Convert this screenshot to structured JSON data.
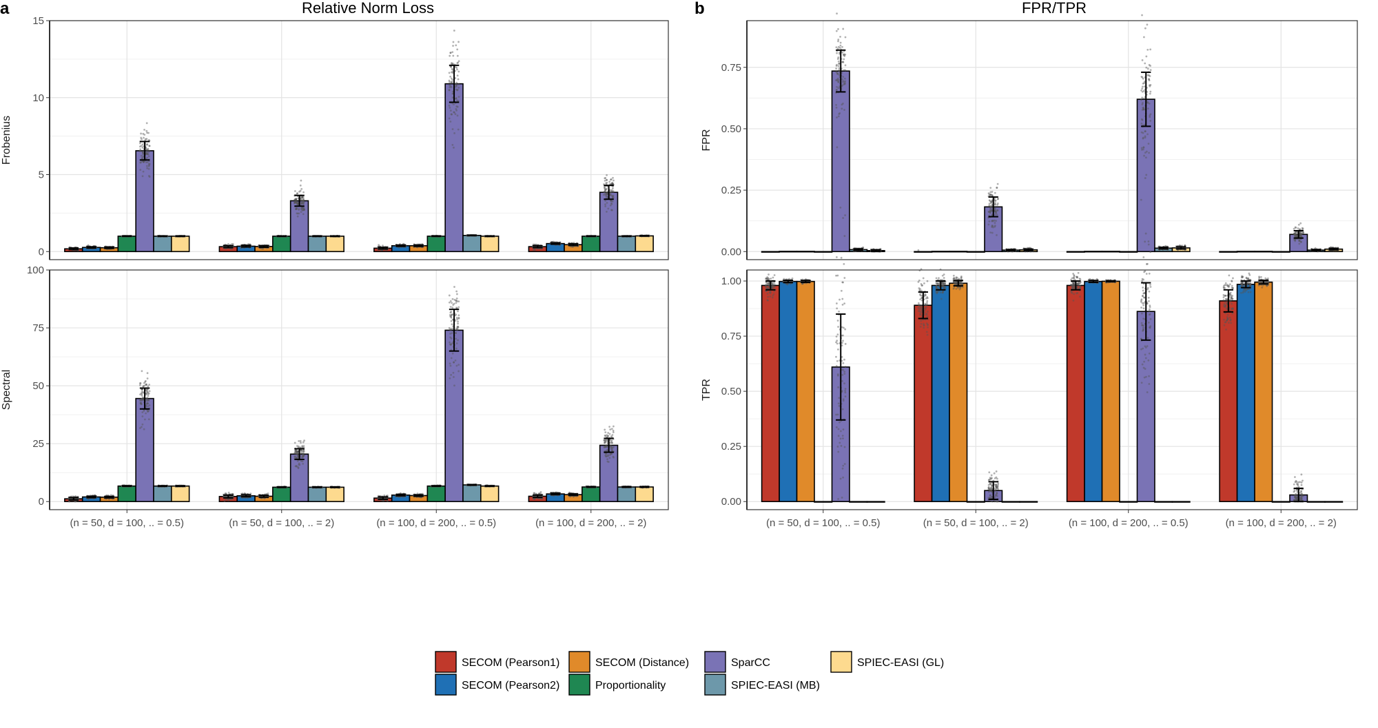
{
  "chart_data": {
    "panel_a": {
      "label": "a",
      "title": "Relative Norm Loss",
      "type": "bar",
      "categories": [
        "(n = 50, d = 100, .. = 0.5)",
        "(n = 50, d = 100, .. = 2)",
        "(n = 100, d = 200, .. = 0.5)",
        "(n = 100, d = 200, .. = 2)"
      ],
      "facets": [
        {
          "name": "Frobenius",
          "ylim": [
            0,
            15
          ],
          "yticks": [
            0,
            5,
            10,
            15
          ],
          "series": [
            {
              "name": "SECOM (Pearson1)",
              "values": [
                0.18,
                0.32,
                0.22,
                0.32
              ],
              "err": [
                0.05,
                0.06,
                0.05,
                0.06
              ]
            },
            {
              "name": "SECOM (Pearson2)",
              "values": [
                0.27,
                0.35,
                0.38,
                0.52
              ],
              "err": [
                0.04,
                0.05,
                0.04,
                0.04
              ]
            },
            {
              "name": "SECOM (Distance)",
              "values": [
                0.25,
                0.33,
                0.38,
                0.45
              ],
              "err": [
                0.04,
                0.05,
                0.04,
                0.05
              ]
            },
            {
              "name": "Proportionality",
              "values": [
                1.0,
                1.0,
                1.0,
                1.0
              ],
              "err": [
                0.01,
                0.01,
                0.01,
                0.01
              ]
            },
            {
              "name": "SparCC",
              "values": [
                6.55,
                3.3,
                10.9,
                3.85
              ],
              "err": [
                0.6,
                0.35,
                1.2,
                0.45
              ]
            },
            {
              "name": "SPIEC-EASI (MB)",
              "values": [
                1.0,
                1.0,
                1.05,
                1.0
              ],
              "err": [
                0.01,
                0.01,
                0.01,
                0.01
              ]
            },
            {
              "name": "SPIEC-EASI (GL)",
              "values": [
                1.0,
                1.0,
                1.0,
                1.02
              ],
              "err": [
                0.01,
                0.01,
                0.01,
                0.01
              ]
            }
          ]
        },
        {
          "name": "Spectral",
          "ylim": [
            0,
            100
          ],
          "yticks": [
            0,
            25,
            50,
            75,
            100
          ],
          "series": [
            {
              "name": "SECOM (Pearson1)",
              "values": [
                1.2,
                2.2,
                1.5,
                2.3
              ],
              "err": [
                0.5,
                0.6,
                0.5,
                0.5
              ]
            },
            {
              "name": "SECOM (Pearson2)",
              "values": [
                2.0,
                2.5,
                2.8,
                3.3
              ],
              "err": [
                0.3,
                0.4,
                0.3,
                0.3
              ]
            },
            {
              "name": "SECOM (Distance)",
              "values": [
                1.9,
                2.3,
                2.6,
                3.0
              ],
              "err": [
                0.3,
                0.4,
                0.3,
                0.3
              ]
            },
            {
              "name": "Proportionality",
              "values": [
                6.7,
                6.2,
                6.7,
                6.3
              ],
              "err": [
                0.1,
                0.1,
                0.1,
                0.1
              ]
            },
            {
              "name": "SparCC",
              "values": [
                44.5,
                20.5,
                74.0,
                24.3
              ],
              "err": [
                4.5,
                2.3,
                9.0,
                3.0
              ]
            },
            {
              "name": "SPIEC-EASI (MB)",
              "values": [
                6.7,
                6.2,
                7.2,
                6.3
              ],
              "err": [
                0.1,
                0.1,
                0.1,
                0.1
              ]
            },
            {
              "name": "SPIEC-EASI (GL)",
              "values": [
                6.7,
                6.2,
                6.7,
                6.3
              ],
              "err": [
                0.1,
                0.1,
                0.1,
                0.1
              ]
            }
          ]
        }
      ]
    },
    "panel_b": {
      "label": "b",
      "title": "FPR/TPR",
      "type": "bar",
      "categories": [
        "(n = 50, d = 100, .. = 0.5)",
        "(n = 50, d = 100, .. = 2)",
        "(n = 100, d = 200, .. = 0.5)",
        "(n = 100, d = 200, .. = 2)"
      ],
      "facets": [
        {
          "name": "FPR",
          "ylim": [
            0,
            0.94
          ],
          "yticks": [
            0.0,
            0.25,
            0.5,
            0.75
          ],
          "tick_labels": [
            "0.00",
            "0.25",
            "0.50",
            "0.75"
          ],
          "series": [
            {
              "name": "SECOM (Pearson1)",
              "values": [
                0.0,
                0.0,
                0.0,
                0.0
              ],
              "err": [
                0.0,
                0.0,
                0.0,
                0.0
              ]
            },
            {
              "name": "SECOM (Pearson2)",
              "values": [
                0.001,
                0.001,
                0.001,
                0.001
              ],
              "err": [
                0.0,
                0.0,
                0.0,
                0.0
              ]
            },
            {
              "name": "SECOM (Distance)",
              "values": [
                0.001,
                0.001,
                0.001,
                0.001
              ],
              "err": [
                0.0,
                0.0,
                0.0,
                0.0
              ]
            },
            {
              "name": "Proportionality",
              "values": [
                0.0,
                0.0,
                0.0,
                0.0
              ],
              "err": [
                0.0,
                0.0,
                0.0,
                0.0
              ]
            },
            {
              "name": "SparCC",
              "values": [
                0.735,
                0.182,
                0.62,
                0.07
              ],
              "err": [
                0.085,
                0.04,
                0.11,
                0.015
              ]
            },
            {
              "name": "SPIEC-EASI (MB)",
              "values": [
                0.008,
                0.006,
                0.014,
                0.006
              ],
              "err": [
                0.003,
                0.002,
                0.003,
                0.002
              ]
            },
            {
              "name": "SPIEC-EASI (GL)",
              "values": [
                0.004,
                0.007,
                0.015,
                0.01
              ],
              "err": [
                0.003,
                0.003,
                0.004,
                0.003
              ]
            }
          ]
        },
        {
          "name": "TPR",
          "ylim": [
            0,
            1.05
          ],
          "yticks": [
            0.0,
            0.25,
            0.5,
            0.75,
            1.0
          ],
          "tick_labels": [
            "0.00",
            "0.25",
            "0.50",
            "0.75",
            "1.00"
          ],
          "series": [
            {
              "name": "SECOM (Pearson1)",
              "values": [
                0.98,
                0.89,
                0.98,
                0.91
              ],
              "err": [
                0.02,
                0.06,
                0.02,
                0.05
              ]
            },
            {
              "name": "SECOM (Pearson2)",
              "values": [
                0.998,
                0.98,
                0.998,
                0.985
              ],
              "err": [
                0.005,
                0.02,
                0.004,
                0.015
              ]
            },
            {
              "name": "SECOM (Distance)",
              "values": [
                0.998,
                0.99,
                0.999,
                0.995
              ],
              "err": [
                0.004,
                0.012,
                0.002,
                0.008
              ]
            },
            {
              "name": "Proportionality",
              "values": [
                0.0,
                0.0,
                0.0,
                0.0
              ],
              "err": [
                0.0,
                0.0,
                0.0,
                0.0
              ]
            },
            {
              "name": "SparCC",
              "values": [
                0.61,
                0.05,
                0.862,
                0.03
              ],
              "err": [
                0.24,
                0.04,
                0.13,
                0.03
              ]
            },
            {
              "name": "SPIEC-EASI (MB)",
              "values": [
                0.0,
                0.0,
                0.0,
                0.0
              ],
              "err": [
                0.0,
                0.0,
                0.0,
                0.0
              ]
            },
            {
              "name": "SPIEC-EASI (GL)",
              "values": [
                0.0,
                0.0,
                0.0,
                0.0
              ],
              "err": [
                0.0,
                0.0,
                0.0,
                0.0
              ]
            }
          ]
        }
      ]
    },
    "legend": [
      {
        "name": "SECOM (Pearson1)",
        "color": "#C0392B"
      },
      {
        "name": "SECOM (Distance)",
        "color": "#E08A2A"
      },
      {
        "name": "SparCC",
        "color": "#7A73B5"
      },
      {
        "name": "SPIEC-EASI (GL)",
        "color": "#FDDA8F"
      },
      {
        "name": "SECOM (Pearson2)",
        "color": "#1F70B5"
      },
      {
        "name": "Proportionality",
        "color": "#1F8752"
      },
      {
        "name": "SPIEC-EASI (MB)",
        "color": "#6D98AA"
      }
    ],
    "series_colors": [
      "#C0392B",
      "#1F70B5",
      "#E08A2A",
      "#1F8752",
      "#7A73B5",
      "#6D98AA",
      "#FDDA8F"
    ]
  }
}
